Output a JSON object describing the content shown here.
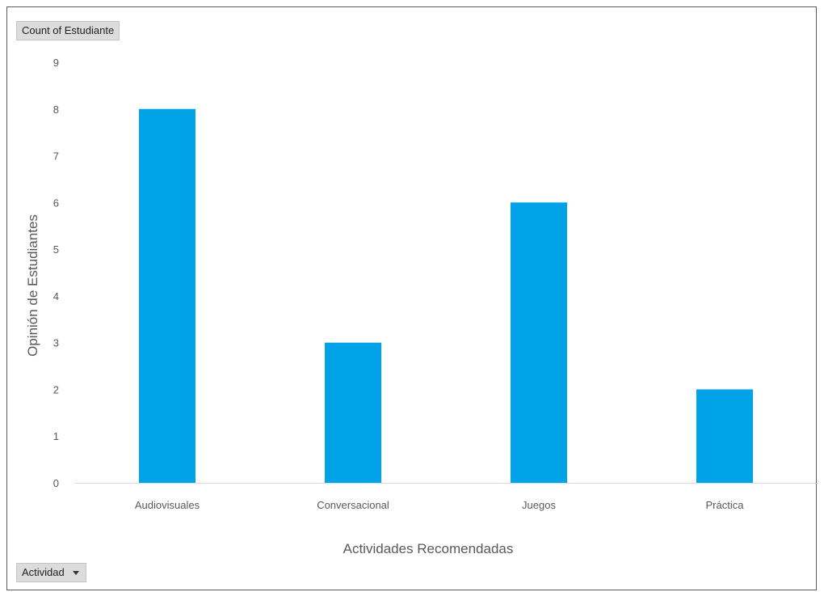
{
  "pivot": {
    "value_field": "Count of Estudiante",
    "axis_field": "Actividad"
  },
  "colors": {
    "bar": "#00a2e8",
    "axis": "#d9d9d9",
    "text": "#595959"
  },
  "chart_data": {
    "type": "bar",
    "categories": [
      "Audiovisuales",
      "Conversacional",
      "Juegos",
      "Práctica"
    ],
    "values": [
      8,
      3,
      6,
      2
    ],
    "xlabel": "Actividades Recomendadas",
    "ylabel": "Opinión de Estudiantes",
    "ylim": [
      0,
      9
    ],
    "yticks": [
      0,
      1,
      2,
      3,
      4,
      5,
      6,
      7,
      8,
      9
    ],
    "grid": false,
    "legend": "none"
  }
}
